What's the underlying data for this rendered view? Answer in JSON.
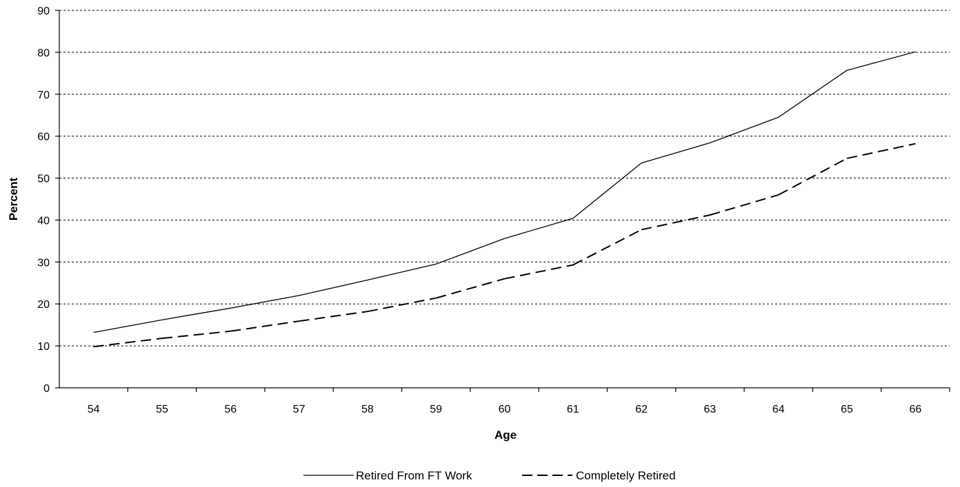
{
  "chart_data": {
    "type": "line",
    "title": "",
    "xlabel": "Age",
    "ylabel": "Percent",
    "categories": [
      "54",
      "55",
      "56",
      "57",
      "58",
      "59",
      "60",
      "61",
      "62",
      "63",
      "64",
      "65",
      "66"
    ],
    "ylim": [
      0,
      90
    ],
    "yticks": [
      "0",
      "10",
      "20",
      "30",
      "40",
      "50",
      "60",
      "70",
      "80",
      "90"
    ],
    "grid": "horizontal dashed",
    "legend_position": "bottom",
    "series": [
      {
        "name": "Retired From FT Work",
        "style": "solid",
        "color": "#000000",
        "values": [
          13.2,
          16.2,
          19.0,
          22.0,
          25.7,
          29.5,
          35.6,
          40.4,
          53.6,
          58.4,
          64.5,
          75.7,
          80.1
        ]
      },
      {
        "name": "Completely Retired",
        "style": "dashed",
        "color": "#000000",
        "values": [
          9.8,
          11.8,
          13.5,
          15.9,
          18.2,
          21.4,
          26.0,
          29.3,
          37.7,
          41.2,
          46.0,
          54.7,
          58.2
        ]
      }
    ]
  }
}
